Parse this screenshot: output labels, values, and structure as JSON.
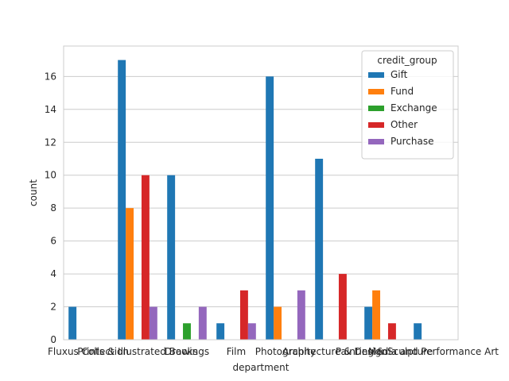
{
  "chart_data": {
    "type": "bar",
    "title": "",
    "xlabel": "department",
    "ylabel": "count",
    "ylim": [
      0,
      17.85
    ],
    "yticks": [
      0,
      2,
      4,
      6,
      8,
      10,
      12,
      14,
      16
    ],
    "grid": "horizontal",
    "legend_title": "credit_group",
    "legend_position": "top-right",
    "categories": [
      "Fluxus Collection",
      "Prints & Illustrated Books",
      "Drawings",
      "Film",
      "Photography",
      "Architecture & Design",
      "Painting & Sculpture",
      "Media and Performance Art"
    ],
    "series": [
      {
        "name": "Gift",
        "color": "#1f77b4",
        "values": [
          2,
          17,
          10,
          1,
          16,
          11,
          2,
          1
        ]
      },
      {
        "name": "Fund",
        "color": "#ff7f0e",
        "values": [
          0,
          8,
          0,
          0,
          2,
          0,
          3,
          0
        ]
      },
      {
        "name": "Exchange",
        "color": "#2ca02c",
        "values": [
          0,
          0,
          1,
          0,
          0,
          0,
          0,
          0
        ]
      },
      {
        "name": "Other",
        "color": "#d62728",
        "values": [
          0,
          10,
          0,
          3,
          0,
          4,
          1,
          0
        ]
      },
      {
        "name": "Purchase",
        "color": "#9467bd",
        "values": [
          0,
          2,
          2,
          1,
          3,
          0,
          0,
          0
        ]
      }
    ]
  }
}
